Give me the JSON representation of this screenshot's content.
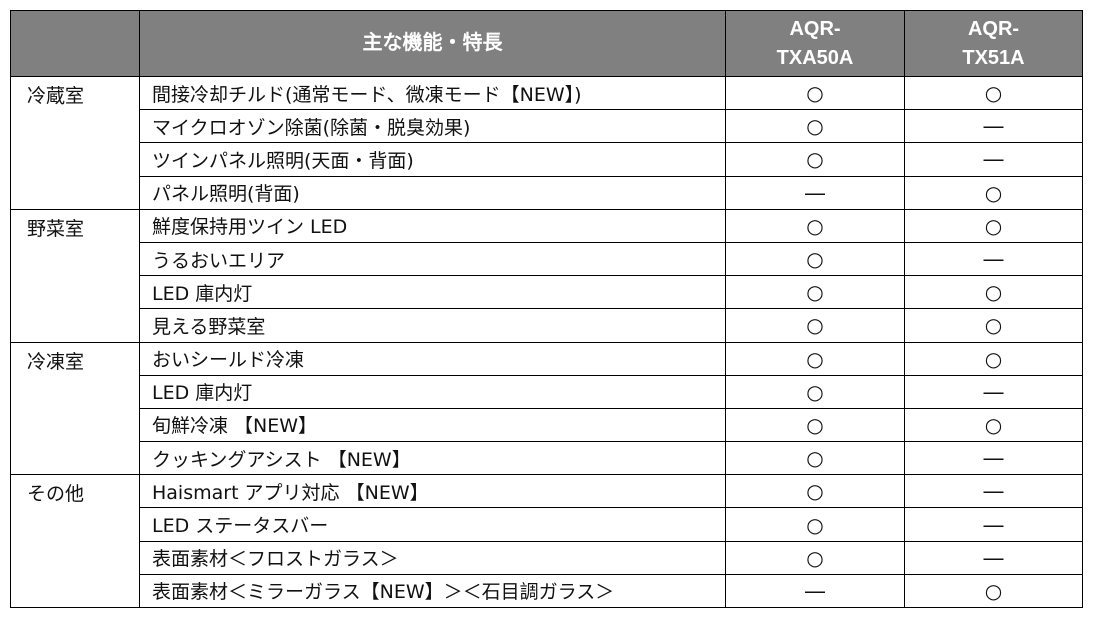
{
  "table": {
    "headers": [
      "",
      "主な機能・特長",
      "AQR-\nTXA50A",
      "AQR-\nTX51A"
    ],
    "header_lines": {
      "col3": [
        "AQR-",
        "TXA50A"
      ],
      "col4": [
        "AQR-",
        "TX51A"
      ]
    },
    "groups": [
      {
        "category": "冷蔵室",
        "rows": [
          {
            "feature": "間接冷却チルド(通常モード、微凍モード【NEW】)",
            "a": "○",
            "b": "○"
          },
          {
            "feature": "マイクロオゾン除菌(除菌・脱臭効果)",
            "a": "○",
            "b": "―"
          },
          {
            "feature": "ツインパネル照明(天面・背面)",
            "a": "○",
            "b": "―"
          },
          {
            "feature": "パネル照明(背面)",
            "a": "―",
            "b": "○"
          }
        ]
      },
      {
        "category": "野菜室",
        "rows": [
          {
            "feature": "鮮度保持用ツイン LED",
            "a": "○",
            "b": "○"
          },
          {
            "feature": "うるおいエリア",
            "a": "○",
            "b": "―"
          },
          {
            "feature": "LED 庫内灯",
            "a": "○",
            "b": "○"
          },
          {
            "feature": "見える野菜室",
            "a": "○",
            "b": "○"
          }
        ]
      },
      {
        "category": "冷凍室",
        "rows": [
          {
            "feature": "おいシールド冷凍",
            "a": "○",
            "b": "○"
          },
          {
            "feature": "LED 庫内灯",
            "a": "○",
            "b": "―"
          },
          {
            "feature": "旬鮮冷凍 【NEW】",
            "a": "○",
            "b": "○"
          },
          {
            "feature": "クッキングアシスト 【NEW】",
            "a": "○",
            "b": "―"
          }
        ]
      },
      {
        "category": "その他",
        "rows": [
          {
            "feature": "Haismart アプリ対応 【NEW】",
            "a": "○",
            "b": "―"
          },
          {
            "feature": "LED ステータスバー",
            "a": "○",
            "b": "―"
          },
          {
            "feature": "表面素材＜フロストガラス＞",
            "a": "○",
            "b": "―"
          },
          {
            "feature": "表面素材＜ミラーガラス【NEW】＞＜石目調ガラス＞",
            "a": "―",
            "b": "○"
          }
        ]
      }
    ]
  }
}
